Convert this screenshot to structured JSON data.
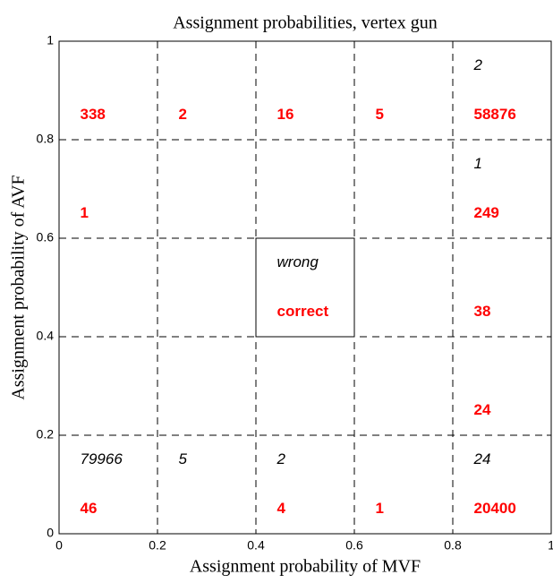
{
  "chart_data": {
    "type": "text-grid",
    "title": "Assignment probabilities, vertex gun",
    "xlabel": "Assignment probability of MVF",
    "ylabel": "Assignment probability of AVF",
    "xlim": [
      0,
      1
    ],
    "ylim": [
      0,
      1
    ],
    "xticks": [
      0,
      0.2,
      0.4,
      0.6,
      0.8,
      1
    ],
    "yticks": [
      0,
      0.2,
      0.4,
      0.6,
      0.8,
      1
    ],
    "grid": true,
    "legend": {
      "wrong": "wrong",
      "correct": "correct"
    },
    "correct": [
      [
        46,
        null,
        4,
        1,
        20400
      ],
      [
        null,
        null,
        null,
        null,
        24
      ],
      [
        null,
        null,
        null,
        null,
        38
      ],
      [
        1,
        null,
        null,
        null,
        249
      ],
      [
        338,
        2,
        16,
        5,
        58876
      ]
    ],
    "wrong": [
      [
        79966,
        5,
        2,
        null,
        24
      ],
      [
        null,
        null,
        null,
        null,
        null
      ],
      [
        null,
        null,
        null,
        null,
        null
      ],
      [
        null,
        null,
        null,
        null,
        1
      ],
      [
        null,
        null,
        null,
        null,
        2
      ]
    ]
  }
}
